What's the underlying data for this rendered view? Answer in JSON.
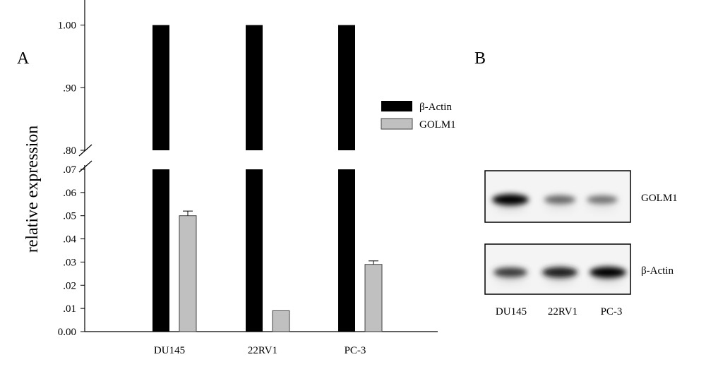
{
  "panels": {
    "a": "A",
    "b": "B"
  },
  "chart_data": {
    "type": "bar",
    "ylabel": "relative  expression",
    "categories": [
      "DU145",
      "22RV1",
      "PC-3"
    ],
    "series": [
      {
        "name": "β-Actin",
        "values": [
          1.0,
          1.0,
          1.0
        ],
        "color": "#000000"
      },
      {
        "name": "GOLM1",
        "values": [
          0.05,
          0.009,
          0.029
        ],
        "errors": [
          0.002,
          0.0,
          0.0015
        ],
        "color": "#c0c0c0"
      }
    ],
    "y_axis_break": {
      "lower_range": [
        0,
        0.07
      ],
      "upper_range": [
        0.8,
        1.04
      ]
    },
    "y_ticks_lower": [
      {
        "value": 0,
        "label": "0.00"
      },
      {
        "value": 0.01,
        "label": ".01"
      },
      {
        "value": 0.02,
        "label": ".02"
      },
      {
        "value": 0.03,
        "label": ".03"
      },
      {
        "value": 0.04,
        "label": ".04"
      },
      {
        "value": 0.05,
        "label": ".05"
      },
      {
        "value": 0.06,
        "label": ".06"
      },
      {
        "value": 0.07,
        "label": ".07"
      }
    ],
    "y_ticks_upper": [
      {
        "value": 0.8,
        "label": ".80"
      },
      {
        "value": 0.9,
        "label": ".90"
      },
      {
        "value": 1.0,
        "label": "1.00"
      }
    ],
    "legend_position": "right"
  },
  "blot": {
    "lanes": [
      "DU145",
      "22RV1",
      "PC-3"
    ],
    "rows": [
      {
        "label": "GOLM1",
        "intensity": [
          1.0,
          0.55,
          0.5
        ]
      },
      {
        "label": "β-Actin",
        "intensity": [
          0.75,
          0.9,
          1.0
        ]
      }
    ]
  }
}
